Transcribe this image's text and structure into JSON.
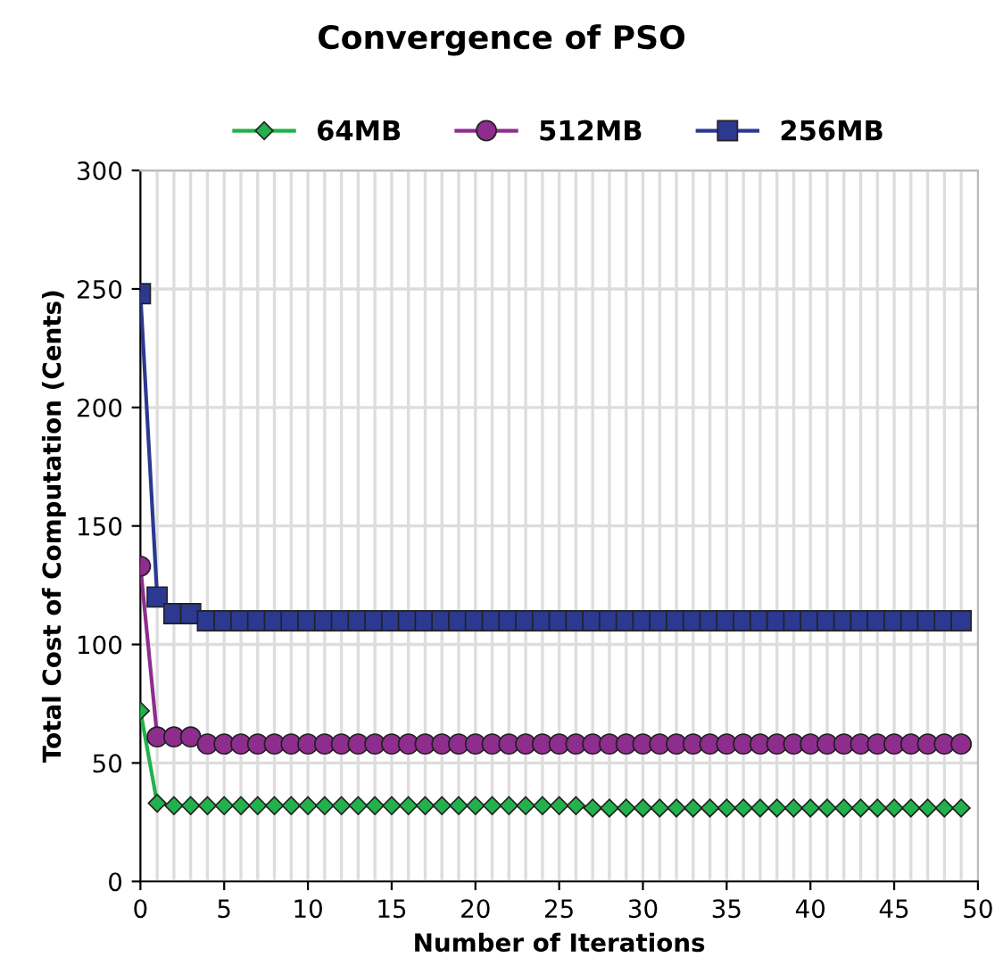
{
  "chart_data": {
    "type": "line",
    "title": "Convergence of PSO",
    "xlabel": "Number of Iterations",
    "ylabel": "Total Cost of Computation (Cents)",
    "x": [
      0,
      1,
      2,
      3,
      4,
      5,
      6,
      7,
      8,
      9,
      10,
      11,
      12,
      13,
      14,
      15,
      16,
      17,
      18,
      19,
      20,
      21,
      22,
      23,
      24,
      25,
      26,
      27,
      28,
      29,
      30,
      31,
      32,
      33,
      34,
      35,
      36,
      37,
      38,
      39,
      40,
      41,
      42,
      43,
      44,
      45,
      46,
      47,
      48,
      49
    ],
    "series": [
      {
        "name": "64MB",
        "color": "#22b14c",
        "marker": "diamond",
        "values": [
          72,
          33,
          32,
          32,
          32,
          32,
          32,
          32,
          32,
          32,
          32,
          32,
          32,
          32,
          32,
          32,
          32,
          32,
          32,
          32,
          32,
          32,
          32,
          32,
          32,
          32,
          32,
          31,
          31,
          31,
          31,
          31,
          31,
          31,
          31,
          31,
          31,
          31,
          31,
          31,
          31,
          31,
          31,
          31,
          31,
          31,
          31,
          31,
          31,
          31
        ]
      },
      {
        "name": "512MB",
        "color": "#8e2d8e",
        "marker": "circle",
        "values": [
          133,
          61,
          61,
          61,
          58,
          58,
          58,
          58,
          58,
          58,
          58,
          58,
          58,
          58,
          58,
          58,
          58,
          58,
          58,
          58,
          58,
          58,
          58,
          58,
          58,
          58,
          58,
          58,
          58,
          58,
          58,
          58,
          58,
          58,
          58,
          58,
          58,
          58,
          58,
          58,
          58,
          58,
          58,
          58,
          58,
          58,
          58,
          58,
          58,
          58
        ]
      },
      {
        "name": "256MB",
        "color": "#2b3990",
        "marker": "square",
        "values": [
          248,
          120,
          113,
          113,
          110,
          110,
          110,
          110,
          110,
          110,
          110,
          110,
          110,
          110,
          110,
          110,
          110,
          110,
          110,
          110,
          110,
          110,
          110,
          110,
          110,
          110,
          110,
          110,
          110,
          110,
          110,
          110,
          110,
          110,
          110,
          110,
          110,
          110,
          110,
          110,
          110,
          110,
          110,
          110,
          110,
          110,
          110,
          110,
          110,
          110
        ]
      }
    ],
    "xlim": [
      0,
      50
    ],
    "ylim": [
      0,
      300
    ],
    "xticks": [
      0,
      5,
      10,
      15,
      20,
      25,
      30,
      35,
      40,
      45,
      50
    ],
    "yticks": [
      0,
      50,
      100,
      150,
      200,
      250,
      300
    ],
    "grid": true,
    "legend": "top"
  }
}
